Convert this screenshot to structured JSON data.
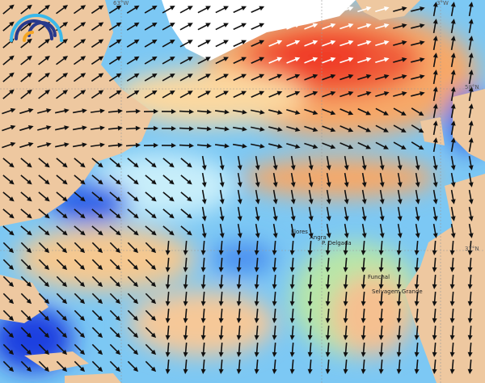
{
  "map": {
    "grid_labels": {
      "lon_63w": "63°W",
      "lon_3w": "3°W",
      "lat_58n": "58°N",
      "lat_37n": "37°N"
    },
    "places": [
      {
        "name": "Flores"
      },
      {
        "name": "Angra"
      },
      {
        "name": "P. Delgada"
      },
      {
        "name": "Funchal"
      },
      {
        "name": "Selvagem Grande"
      }
    ],
    "logo_icon": "rainbow-arcs-logo",
    "colors": {
      "land": "#eec8a0",
      "ocean_low": "#1a3fe0",
      "ocean_mid": "#7cc8f4",
      "ocean_calm": "#c8eefa",
      "mid": "#b8e6a8",
      "high": "#f7a868",
      "peak": "#f03a28"
    }
  }
}
